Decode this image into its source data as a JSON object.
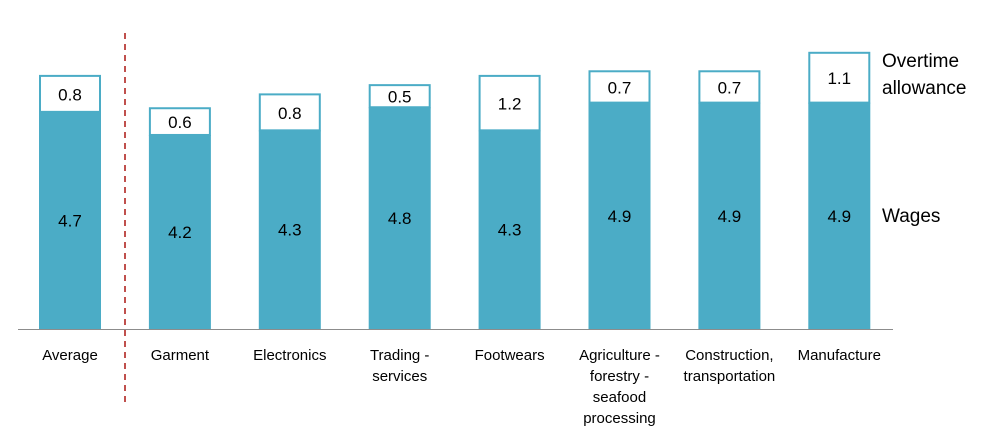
{
  "chart_data": {
    "type": "bar",
    "stacked": true,
    "categories": [
      "Average",
      "Garment",
      "Electronics",
      "Trading - services",
      "Footwears",
      "Agriculture - forestry - seafood processing",
      "Construction, transportation",
      "Manufacture"
    ],
    "category_lines": [
      [
        "Average"
      ],
      [
        "Garment"
      ],
      [
        "Electronics"
      ],
      [
        "Trading -",
        "services"
      ],
      [
        "Footwears"
      ],
      [
        "Agriculture -",
        "forestry -",
        "seafood",
        "processing"
      ],
      [
        "Construction,",
        "transportation"
      ],
      [
        "Manufacture"
      ]
    ],
    "series": [
      {
        "name": "Wages",
        "values": [
          4.7,
          4.2,
          4.3,
          4.8,
          4.3,
          4.9,
          4.9,
          4.9
        ],
        "color": "#4BACC6",
        "style": "filled"
      },
      {
        "name": "Overtime allowance",
        "values": [
          0.8,
          0.6,
          0.8,
          0.5,
          1.2,
          0.7,
          0.7,
          1.1
        ],
        "color": "#FFFFFF",
        "outline": "#4BACC6",
        "style": "outlined"
      }
    ],
    "legend_lines": {
      "wages": [
        "Wages"
      ],
      "overtime": [
        "Overtime",
        "allowance"
      ]
    },
    "legend_placement": "right",
    "separator_color": "#C0504D",
    "separator_after": "Average",
    "grid": false,
    "ylim": [
      0,
      6.2
    ]
  }
}
